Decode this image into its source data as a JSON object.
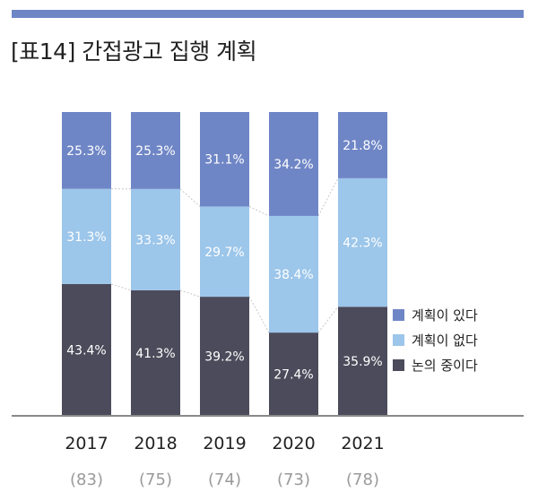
{
  "title": "[표14] 간접광고 집행 계획",
  "colors": {
    "accent_bar": "#6f86c6",
    "plan_yes": "#6f86c6",
    "plan_no": "#9cc6ea",
    "discussing": "#4b4b5b",
    "baseline": "#8a8a8a"
  },
  "chart_data": {
    "type": "bar",
    "stacked": true,
    "percent": true,
    "categories": [
      "2017",
      "2018",
      "2019",
      "2020",
      "2021"
    ],
    "sample_sizes": [
      "(83)",
      "(75)",
      "(74)",
      "(73)",
      "(78)"
    ],
    "series": [
      {
        "name": "논의 중이다",
        "values": [
          43.4,
          41.3,
          39.2,
          27.4,
          35.9
        ],
        "labels": [
          "43.4%",
          "41.3%",
          "39.2%",
          "27.4%",
          "35.9%"
        ]
      },
      {
        "name": "계획이 없다",
        "values": [
          31.3,
          33.3,
          29.7,
          38.4,
          42.3
        ],
        "labels": [
          "31.3%",
          "33.3%",
          "29.7%",
          "38.4%",
          "42.3%"
        ]
      },
      {
        "name": "계획이 있다",
        "values": [
          25.3,
          25.3,
          31.1,
          34.2,
          21.8
        ],
        "labels": [
          "25.3%",
          "25.3%",
          "31.1%",
          "34.2%",
          "21.8%"
        ]
      }
    ],
    "legend": [
      "계획이 있다",
      "계획이 없다",
      "논의 중이다"
    ],
    "legend_position": "right",
    "ylim": [
      0,
      100
    ],
    "grid": false
  }
}
